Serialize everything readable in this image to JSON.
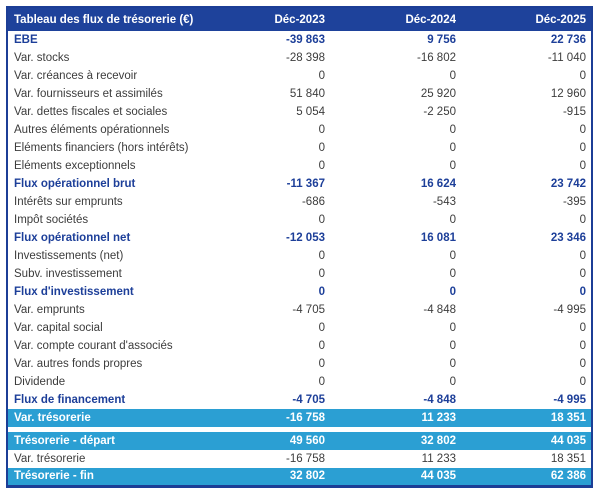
{
  "colors": {
    "header_background": "#1e429b",
    "table_border": "#1c3e96",
    "subtotal_text": "#1d3f99",
    "body_text": "#3c3c3c",
    "highlight_background": "#2b9fd3",
    "highlight_text": "#ffffff"
  },
  "chart_data": {
    "type": "table",
    "title": "Tableau des flux de trésorerie (€)",
    "columns": [
      "Déc-2023",
      "Déc-2024",
      "Déc-2025"
    ],
    "rows": [
      {
        "label": "EBE",
        "style": "bold",
        "values": [
          -39863,
          9756,
          22736
        ]
      },
      {
        "label": "Var. stocks",
        "style": "normal",
        "values": [
          -28398,
          -16802,
          -11040
        ]
      },
      {
        "label": "Var. créances à recevoir",
        "style": "normal",
        "values": [
          0,
          0,
          0
        ]
      },
      {
        "label": "Var. fournisseurs et assimilés",
        "style": "normal",
        "values": [
          51840,
          25920,
          12960
        ]
      },
      {
        "label": "Var. dettes fiscales et sociales",
        "style": "normal",
        "values": [
          5054,
          -2250,
          -915
        ]
      },
      {
        "label": "Autres éléments opérationnels",
        "style": "normal",
        "values": [
          0,
          0,
          0
        ]
      },
      {
        "label": "Eléments financiers (hors intérêts)",
        "style": "normal",
        "values": [
          0,
          0,
          0
        ]
      },
      {
        "label": "Eléments exceptionnels",
        "style": "normal",
        "values": [
          0,
          0,
          0
        ]
      },
      {
        "label": "Flux opérationnel brut",
        "style": "bold",
        "values": [
          -11367,
          16624,
          23742
        ]
      },
      {
        "label": "Intérêts sur emprunts",
        "style": "normal",
        "values": [
          -686,
          -543,
          -395
        ]
      },
      {
        "label": "Impôt sociétés",
        "style": "normal",
        "values": [
          0,
          0,
          0
        ]
      },
      {
        "label": "Flux opérationnel net",
        "style": "bold",
        "values": [
          -12053,
          16081,
          23346
        ]
      },
      {
        "label": "Investissements (net)",
        "style": "normal",
        "values": [
          0,
          0,
          0
        ]
      },
      {
        "label": "Subv. investissement",
        "style": "normal",
        "values": [
          0,
          0,
          0
        ]
      },
      {
        "label": "Flux d'investissement",
        "style": "bold",
        "values": [
          0,
          0,
          0
        ]
      },
      {
        "label": "Var. emprunts",
        "style": "normal",
        "values": [
          -4705,
          -4848,
          -4995
        ]
      },
      {
        "label": "Var. capital social",
        "style": "normal",
        "values": [
          0,
          0,
          0
        ]
      },
      {
        "label": "Var. compte courant d'associés",
        "style": "normal",
        "values": [
          0,
          0,
          0
        ]
      },
      {
        "label": "Var. autres fonds propres",
        "style": "normal",
        "values": [
          0,
          0,
          0
        ]
      },
      {
        "label": "Dividende",
        "style": "normal",
        "values": [
          0,
          0,
          0
        ]
      },
      {
        "label": "Flux de financement",
        "style": "bold",
        "values": [
          -4705,
          -4848,
          -4995
        ]
      },
      {
        "label": "Var. trésorerie",
        "style": "highlight",
        "values": [
          -16758,
          11233,
          18351
        ]
      },
      {
        "label": "",
        "style": "spacer",
        "values": []
      },
      {
        "label": "Trésorerie - départ",
        "style": "highlight",
        "values": [
          49560,
          32802,
          44035
        ]
      },
      {
        "label": "Var. trésorerie",
        "style": "normal",
        "values": [
          -16758,
          11233,
          18351
        ]
      },
      {
        "label": "Trésorerie - fin",
        "style": "highlight",
        "values": [
          32802,
          44035,
          62386
        ]
      }
    ]
  }
}
